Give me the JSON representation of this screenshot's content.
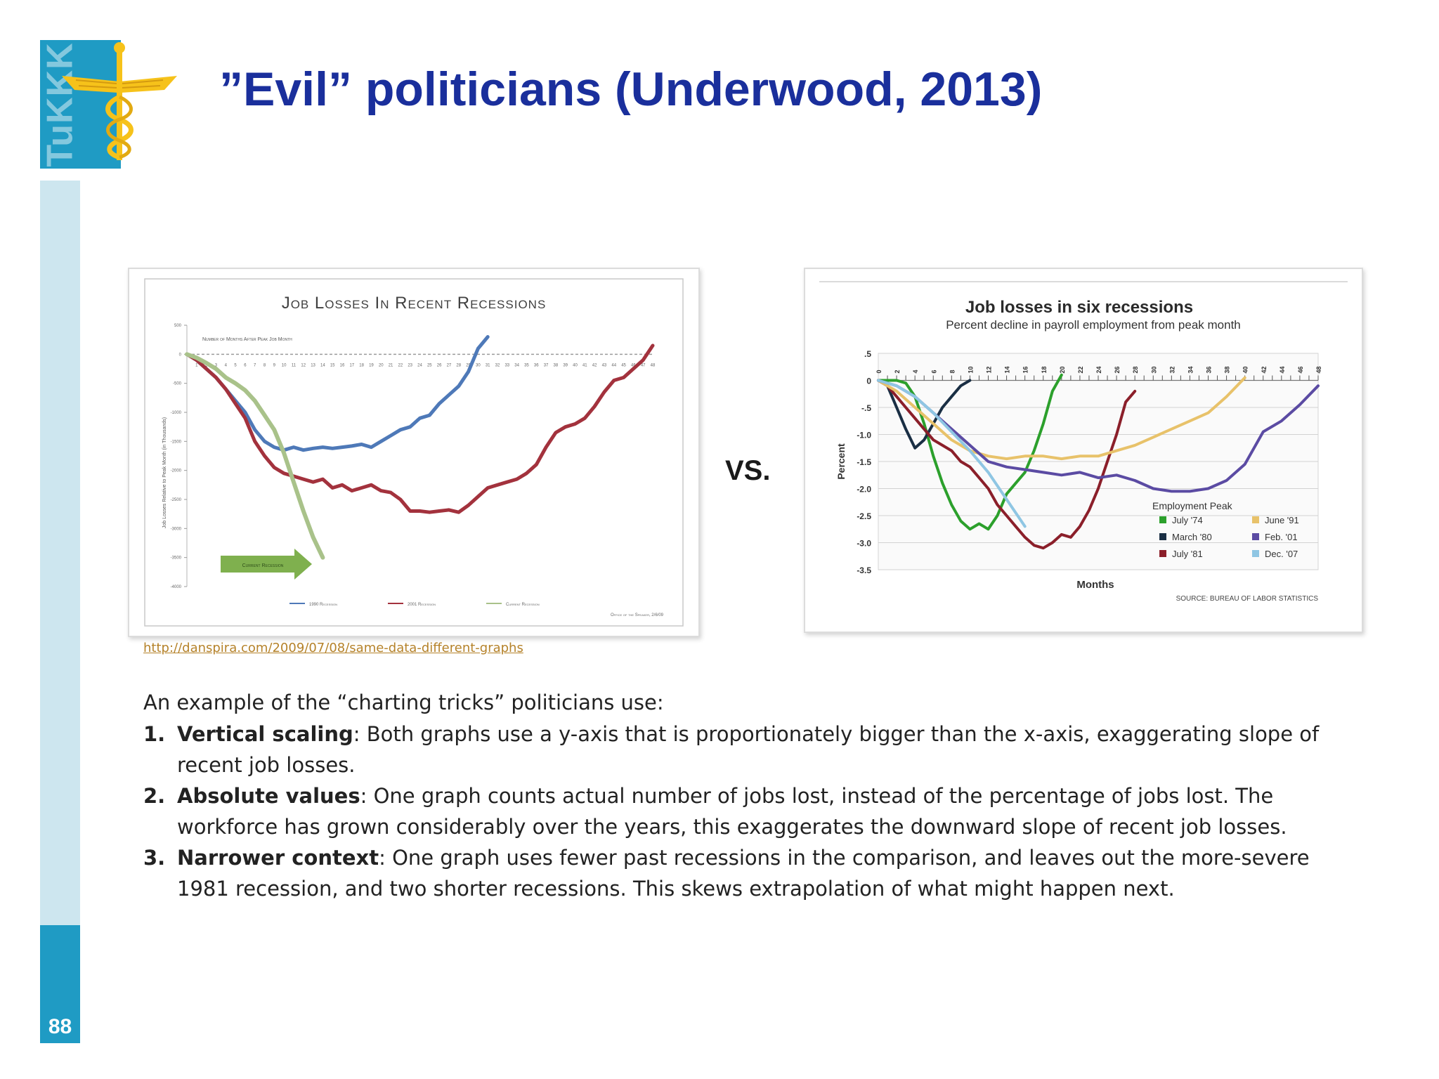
{
  "slide": {
    "title": "”Evil” politicians (Underwood, 2013)",
    "page_number": "88",
    "logo_text": "TuKKK"
  },
  "colors": {
    "sidebar_blue": "#1f9bc4",
    "sidebar_light": "#cde6ef",
    "title_blue": "#1a2f9c",
    "emblem_yellow": "#f6c21a"
  },
  "comparison_label": "VS.",
  "source_link": "http://danspira.com/2009/07/08/same-data-different-graphs",
  "body": {
    "intro": "An example of the “charting tricks” politicians use:",
    "items": [
      {
        "num": "1.",
        "term": "Vertical scaling",
        "text": ": Both graphs use a y-axis that is proportionately bigger than the x-axis, exaggerating slope of recent job losses."
      },
      {
        "num": "2.",
        "term": "Absolute values",
        "text": ": One graph counts actual number of jobs lost, instead of the percentage of jobs lost. The workforce has grown considerably over the years, this exaggerates the downward slope of recent job losses."
      },
      {
        "num": "3.",
        "term": "Narrower context",
        "text": ": One graph uses fewer past recessions in the comparison, and leaves out the more-severe 1981 recession, and two shorter recessions.  This skews extrapolation of what might happen next."
      }
    ]
  },
  "chart_data": [
    {
      "type": "line",
      "title": "Job Losses In Recent Recessions",
      "subtitle": "Number of Months After Peak Job Month",
      "ylabel": "Job Losses Relative to Peak Month (in Thousands)",
      "xlim": [
        0,
        48
      ],
      "ylim": [
        -4000,
        500
      ],
      "y_ticks": [
        500,
        0,
        -500,
        -1000,
        -1500,
        -2000,
        -2500,
        -3000,
        -3500,
        -4000
      ],
      "x_ticks": [
        1,
        2,
        3,
        4,
        5,
        6,
        7,
        8,
        9,
        10,
        11,
        12,
        13,
        14,
        15,
        16,
        17,
        18,
        19,
        20,
        21,
        22,
        23,
        24,
        25,
        26,
        27,
        28,
        29,
        30,
        31,
        32,
        33,
        34,
        35,
        36,
        37,
        38,
        39,
        40,
        41,
        42,
        43,
        44,
        45,
        46,
        47,
        48
      ],
      "arrow_label": "Current Recession",
      "credit": "Office of the Speaker, 2/6/09",
      "legend": [
        "1990 Recession",
        "2001 Recession",
        "Current Recession"
      ],
      "series": [
        {
          "name": "1990 Recession",
          "color": "#4e79b8",
          "x": [
            0,
            1,
            2,
            3,
            4,
            5,
            6,
            7,
            8,
            9,
            10,
            11,
            12,
            13,
            14,
            15,
            16,
            17,
            18,
            19,
            20,
            21,
            22,
            23,
            24,
            25,
            26,
            27,
            28,
            29,
            30,
            31
          ],
          "y": [
            0,
            -100,
            -250,
            -400,
            -600,
            -800,
            -1000,
            -1300,
            -1500,
            -1600,
            -1650,
            -1600,
            -1650,
            -1620,
            -1600,
            -1620,
            -1600,
            -1580,
            -1550,
            -1600,
            -1500,
            -1400,
            -1300,
            -1250,
            -1100,
            -1050,
            -850,
            -700,
            -550,
            -300,
            100,
            300
          ]
        },
        {
          "name": "2001 Recession",
          "color": "#a3323d",
          "x": [
            0,
            1,
            2,
            3,
            4,
            5,
            6,
            7,
            8,
            9,
            10,
            11,
            12,
            13,
            14,
            15,
            16,
            17,
            18,
            19,
            20,
            21,
            22,
            23,
            24,
            25,
            26,
            27,
            28,
            29,
            30,
            31,
            32,
            33,
            34,
            35,
            36,
            37,
            38,
            39,
            40,
            41,
            42,
            43,
            44,
            45,
            46,
            47,
            48
          ],
          "y": [
            0,
            -100,
            -250,
            -400,
            -600,
            -850,
            -1100,
            -1500,
            -1750,
            -1950,
            -2050,
            -2100,
            -2150,
            -2200,
            -2150,
            -2300,
            -2250,
            -2350,
            -2300,
            -2250,
            -2350,
            -2380,
            -2500,
            -2700,
            -2700,
            -2720,
            -2700,
            -2680,
            -2720,
            -2600,
            -2450,
            -2300,
            -2250,
            -2200,
            -2150,
            -2050,
            -1900,
            -1600,
            -1350,
            -1250,
            -1200,
            -1100,
            -900,
            -650,
            -450,
            -400,
            -250,
            -100,
            150
          ]
        },
        {
          "name": "Current Recession",
          "color": "#a9c28a",
          "x": [
            0,
            1,
            2,
            3,
            4,
            5,
            6,
            7,
            8,
            9,
            10,
            11,
            12,
            13,
            14
          ],
          "y": [
            0,
            -60,
            -150,
            -250,
            -400,
            -500,
            -620,
            -800,
            -1050,
            -1300,
            -1700,
            -2200,
            -2700,
            -3150,
            -3500
          ]
        }
      ]
    },
    {
      "type": "line",
      "title": "Job losses in six recessions",
      "subtitle": "Percent decline in payroll employment from peak month",
      "xlabel": "Months",
      "ylabel": "Percent",
      "xlim": [
        0,
        48
      ],
      "ylim": [
        -3.5,
        0.5
      ],
      "y_ticks": [
        ".5",
        "0",
        "-.5",
        "-1.0",
        "-1.5",
        "-2.0",
        "-2.5",
        "-3.0",
        "-3.5"
      ],
      "x_ticks": [
        0,
        2,
        4,
        6,
        8,
        10,
        12,
        14,
        16,
        18,
        20,
        22,
        24,
        26,
        28,
        30,
        32,
        34,
        36,
        38,
        40,
        42,
        44,
        46,
        48
      ],
      "legend_title": "Employment Peak",
      "source": "SOURCE: BUREAU OF LABOR STATISTICS",
      "series": [
        {
          "name": "July '74",
          "color": "#2ca02c",
          "x": [
            0,
            1,
            2,
            3,
            4,
            5,
            6,
            7,
            8,
            9,
            10,
            11,
            12,
            13,
            14,
            15,
            16,
            17,
            18,
            19,
            20
          ],
          "y": [
            0,
            0,
            0,
            -0.05,
            -0.3,
            -0.8,
            -1.4,
            -1.9,
            -2.3,
            -2.6,
            -2.75,
            -2.65,
            -2.75,
            -2.5,
            -2.1,
            -1.9,
            -1.7,
            -1.3,
            -0.8,
            -0.2,
            0.1
          ]
        },
        {
          "name": "March '80",
          "color": "#1a2f44",
          "x": [
            0,
            1,
            2,
            3,
            4,
            5,
            6,
            7,
            8,
            9,
            10
          ],
          "y": [
            0,
            -0.1,
            -0.5,
            -0.9,
            -1.25,
            -1.1,
            -0.8,
            -0.5,
            -0.3,
            -0.1,
            0
          ]
        },
        {
          "name": "July '81",
          "color": "#8b1f2a",
          "x": [
            0,
            1,
            2,
            3,
            4,
            5,
            6,
            7,
            8,
            9,
            10,
            11,
            12,
            13,
            14,
            15,
            16,
            17,
            18,
            19,
            20,
            21,
            22,
            23,
            24,
            25,
            26,
            27,
            28
          ],
          "y": [
            0,
            -0.1,
            -0.3,
            -0.5,
            -0.7,
            -0.9,
            -1.1,
            -1.2,
            -1.3,
            -1.5,
            -1.6,
            -1.8,
            -2.0,
            -2.3,
            -2.5,
            -2.7,
            -2.9,
            -3.05,
            -3.1,
            -3.0,
            -2.85,
            -2.9,
            -2.7,
            -2.4,
            -2.0,
            -1.5,
            -1.0,
            -0.4,
            -0.2
          ]
        },
        {
          "name": "June '91",
          "color": "#e8c26a",
          "x": [
            0,
            2,
            4,
            6,
            8,
            10,
            12,
            14,
            16,
            18,
            20,
            22,
            24,
            26,
            28,
            30,
            32,
            34,
            36,
            38,
            40
          ],
          "y": [
            0,
            -0.2,
            -0.5,
            -0.8,
            -1.1,
            -1.3,
            -1.4,
            -1.45,
            -1.4,
            -1.4,
            -1.45,
            -1.4,
            -1.4,
            -1.3,
            -1.2,
            -1.05,
            -0.9,
            -0.75,
            -0.6,
            -0.3,
            0.05
          ]
        },
        {
          "name": "Feb. '01",
          "color": "#5b4ba3",
          "x": [
            0,
            2,
            4,
            6,
            8,
            10,
            12,
            14,
            16,
            18,
            20,
            22,
            24,
            26,
            28,
            30,
            32,
            34,
            36,
            38,
            40,
            42,
            44,
            46,
            48
          ],
          "y": [
            0,
            -0.1,
            -0.3,
            -0.6,
            -0.9,
            -1.2,
            -1.5,
            -1.6,
            -1.65,
            -1.7,
            -1.75,
            -1.7,
            -1.8,
            -1.75,
            -1.85,
            -2.0,
            -2.05,
            -2.05,
            -2.0,
            -1.85,
            -1.55,
            -0.95,
            -0.75,
            -0.45,
            -0.1
          ]
        },
        {
          "name": "Dec. '07",
          "color": "#8fc6e3",
          "x": [
            0,
            2,
            4,
            6,
            8,
            10,
            12,
            14,
            16
          ],
          "y": [
            0,
            -0.1,
            -0.3,
            -0.6,
            -0.95,
            -1.3,
            -1.7,
            -2.2,
            -2.7
          ]
        }
      ]
    }
  ]
}
